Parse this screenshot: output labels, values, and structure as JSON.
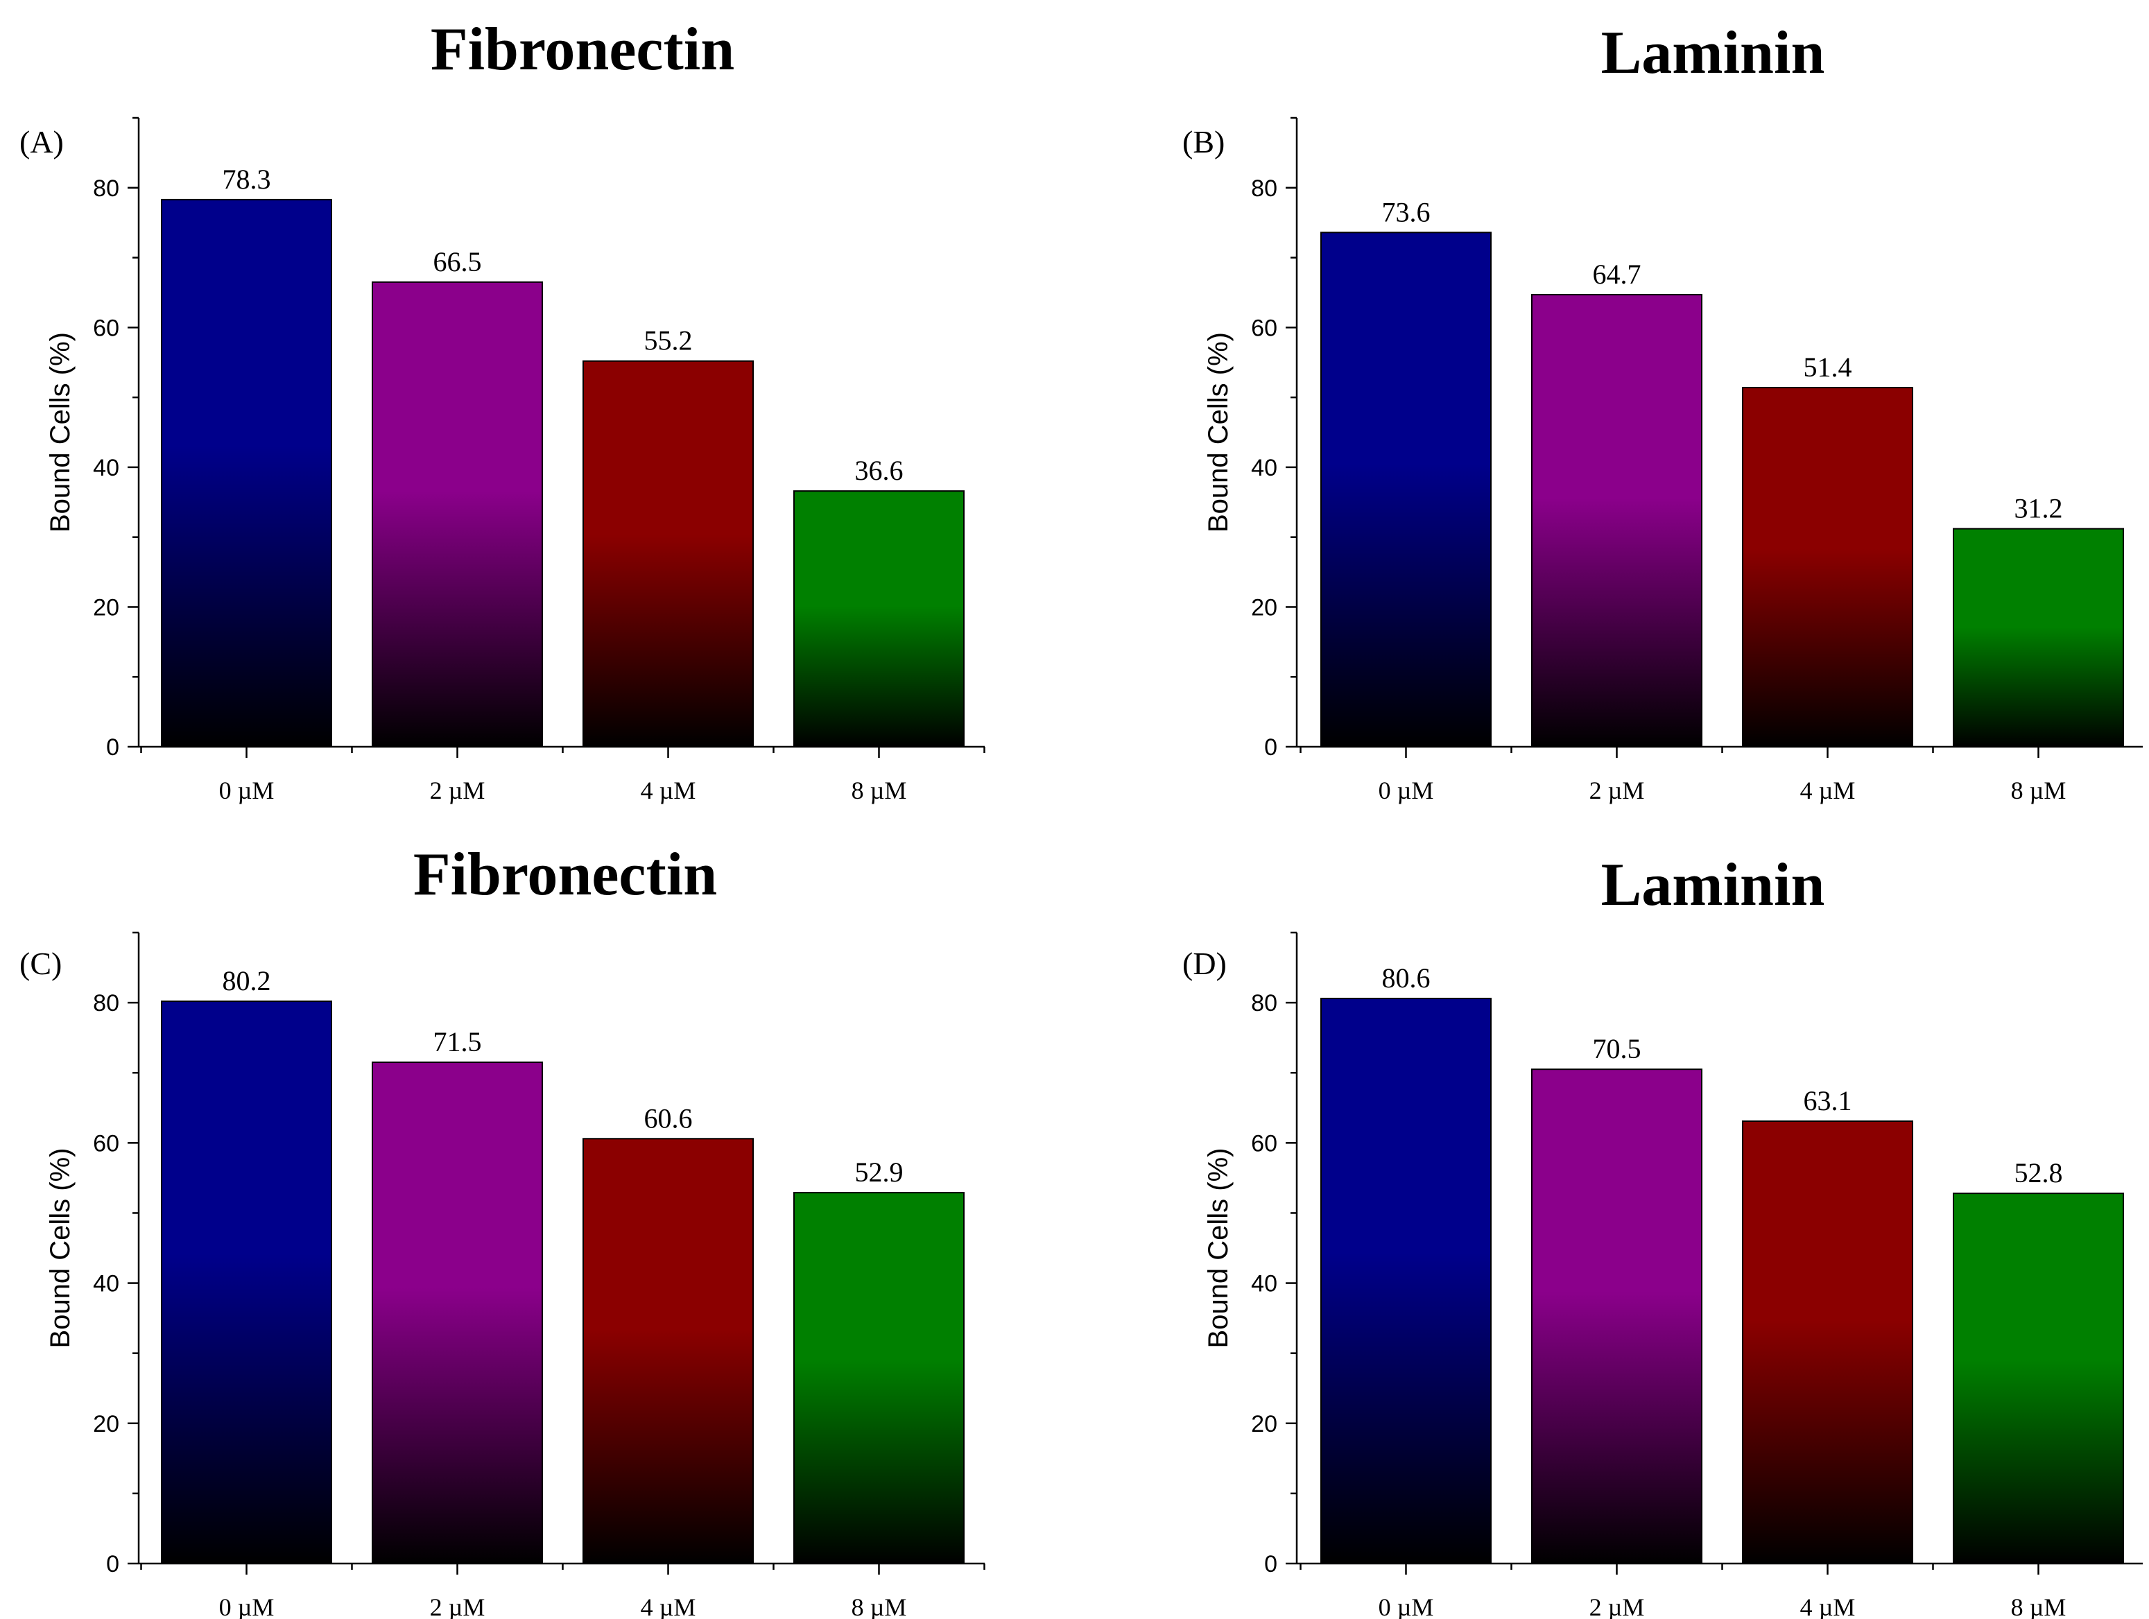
{
  "chart_data": [
    {
      "type": "bar",
      "panel": "(A)",
      "title": "Fibronectin",
      "ylabel": "Bound Cells (%)",
      "xlabel": "",
      "categories": [
        "0 µM",
        "2 µM",
        "4 µM",
        "8 µM"
      ],
      "values": [
        78.3,
        66.5,
        55.2,
        36.6
      ],
      "value_labels": [
        "78.3",
        "66.5",
        "55.2",
        "36.6"
      ],
      "ylim": [
        0,
        90
      ],
      "yticks": [
        0,
        20,
        40,
        60,
        80
      ],
      "grid": false
    },
    {
      "type": "bar",
      "panel": "(B)",
      "title": "Laminin",
      "ylabel": "Bound Cells (%)",
      "xlabel": "",
      "categories": [
        "0 µM",
        "2 µM",
        "4 µM",
        "8 µM"
      ],
      "values": [
        73.6,
        64.7,
        51.4,
        31.2
      ],
      "value_labels": [
        "73.6",
        "64.7",
        "51.4",
        "31.2"
      ],
      "ylim": [
        0,
        90
      ],
      "yticks": [
        0,
        20,
        40,
        60,
        80
      ],
      "grid": false
    },
    {
      "type": "bar",
      "panel": "(C)",
      "title": "Fibronectin",
      "ylabel": "Bound Cells (%)",
      "xlabel": "",
      "categories": [
        "0 µM",
        "2 µM",
        "4 µM",
        "8 µM"
      ],
      "values": [
        80.2,
        71.5,
        60.6,
        52.9
      ],
      "value_labels": [
        "80.2",
        "71.5",
        "60.6",
        "52.9"
      ],
      "ylim": [
        0,
        90
      ],
      "yticks": [
        0,
        20,
        40,
        60,
        80
      ],
      "grid": false
    },
    {
      "type": "bar",
      "panel": "(D)",
      "title": "Laminin",
      "ylabel": "Bound Cells (%)",
      "xlabel": "",
      "categories": [
        "0 µM",
        "2 µM",
        "4 µM",
        "8 µM"
      ],
      "values": [
        80.6,
        70.5,
        63.1,
        52.8
      ],
      "value_labels": [
        "80.6",
        "70.5",
        "63.1",
        "52.8"
      ],
      "ylim": [
        0,
        90
      ],
      "yticks": [
        0,
        20,
        40,
        60,
        80
      ],
      "grid": false
    }
  ],
  "colors": {
    "bar_colors": [
      "#00008b",
      "#8b008b",
      "#8b0000",
      "#008000"
    ],
    "gradient_bottom": "#000000"
  }
}
